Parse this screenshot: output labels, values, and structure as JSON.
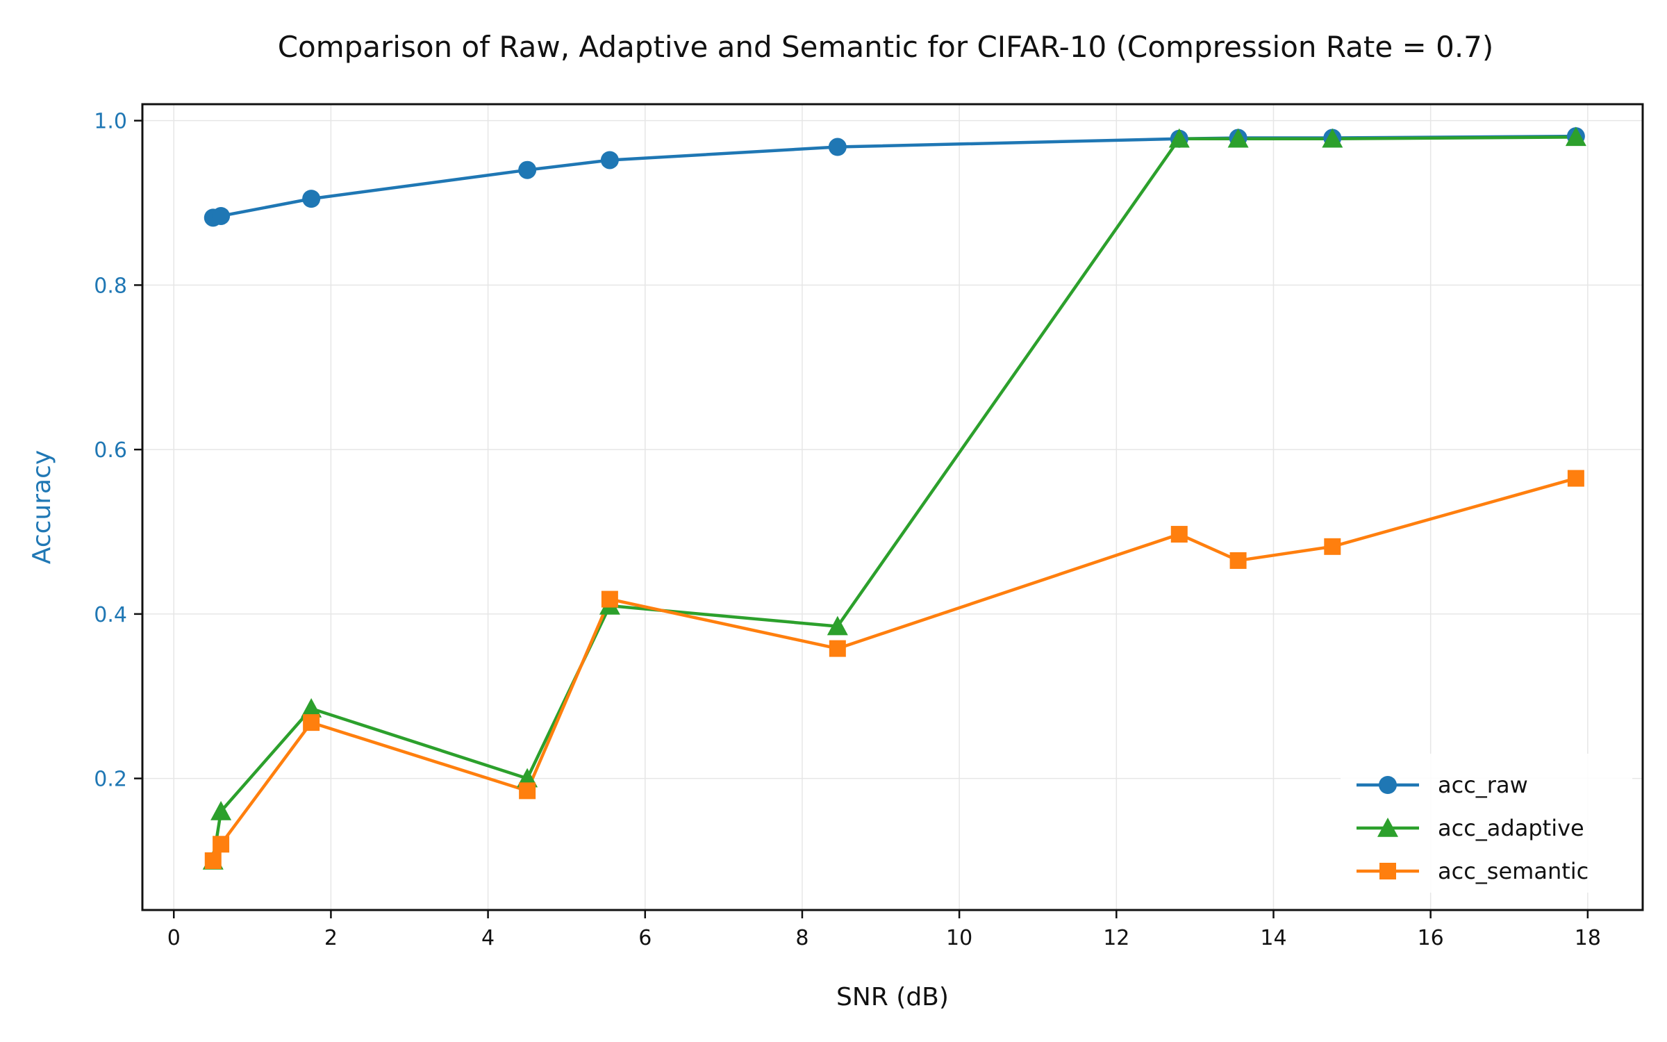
{
  "chart_data": {
    "type": "line",
    "title": "Comparison of Raw, Adaptive and Semantic for CIFAR-10 (Compression Rate = 0.7)",
    "xlabel": "SNR (dB)",
    "ylabel": "Accuracy",
    "xlim": [
      -0.4,
      18.7
    ],
    "ylim": [
      0.04,
      1.02
    ],
    "xticks": [
      0,
      2,
      4,
      6,
      8,
      10,
      12,
      14,
      16,
      18
    ],
    "yticks": [
      0.2,
      0.4,
      0.6,
      0.8,
      1.0
    ],
    "xtick_labels": [
      "0",
      "2",
      "4",
      "6",
      "8",
      "10",
      "12",
      "14",
      "16",
      "18"
    ],
    "ytick_labels": [
      "0.2",
      "0.4",
      "0.6",
      "0.8",
      "1.0"
    ],
    "grid": true,
    "legend_position": "lower-right",
    "ylabel_color": "#1f77b4",
    "series": [
      {
        "name": "acc_raw",
        "color": "#1f77b4",
        "marker": "circle",
        "x": [
          0.5,
          0.6,
          1.75,
          4.5,
          5.55,
          8.45,
          12.8,
          13.55,
          14.75,
          17.85
        ],
        "y": [
          0.882,
          0.884,
          0.905,
          0.94,
          0.952,
          0.968,
          0.978,
          0.979,
          0.979,
          0.981
        ]
      },
      {
        "name": "acc_adaptive",
        "color": "#2ca02c",
        "marker": "triangle",
        "x": [
          0.5,
          0.6,
          1.75,
          4.5,
          5.55,
          8.45,
          12.8,
          13.55,
          14.75,
          17.85
        ],
        "y": [
          0.1,
          0.16,
          0.285,
          0.2,
          0.41,
          0.385,
          0.978,
          0.978,
          0.978,
          0.98
        ]
      },
      {
        "name": "acc_semantic",
        "color": "#ff7f0e",
        "marker": "square",
        "x": [
          0.5,
          0.6,
          1.75,
          4.5,
          5.55,
          8.45,
          12.8,
          13.55,
          14.75,
          17.85
        ],
        "y": [
          0.1,
          0.12,
          0.268,
          0.185,
          0.418,
          0.358,
          0.497,
          0.465,
          0.482,
          0.565
        ]
      }
    ]
  }
}
